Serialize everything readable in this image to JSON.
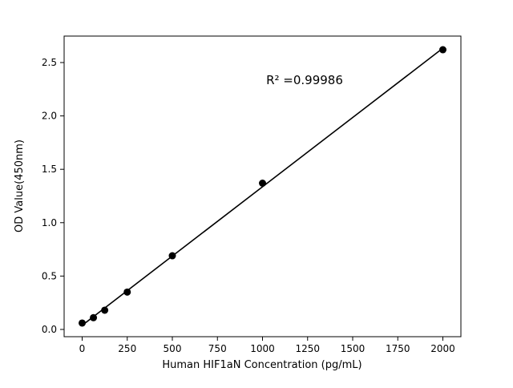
{
  "figure": {
    "background": "#ffffff"
  },
  "chart_data": {
    "type": "scatter",
    "title": "",
    "xlabel": "Human HIF1aN Concentration (pg/mL)",
    "ylabel": "OD Value(450nm)",
    "annotation": "R² =0.99986",
    "r_squared": 0.99986,
    "points": {
      "x": [
        0,
        62.5,
        125,
        250,
        500,
        1000,
        2000
      ],
      "y": [
        0.06,
        0.11,
        0.18,
        0.35,
        0.69,
        1.37,
        2.62
      ]
    },
    "fit_line": true,
    "xlim": [
      -100,
      2100
    ],
    "ylim": [
      -0.068,
      2.748
    ],
    "xticks": {
      "values": [
        0,
        250,
        500,
        750,
        1000,
        1250,
        1500,
        1750,
        2000
      ],
      "labels": [
        "0",
        "250",
        "500",
        "750",
        "1000",
        "1250",
        "1500",
        "1750",
        "2000"
      ]
    },
    "yticks": {
      "values": [
        0.0,
        0.5,
        1.0,
        1.5,
        2.0,
        2.5
      ],
      "labels": [
        "0.0",
        "0.5",
        "1.0",
        "1.5",
        "2.0",
        "2.5"
      ]
    },
    "marker_color": "#000000",
    "line_color": "#000000",
    "grid": false,
    "legend_position": "none"
  }
}
